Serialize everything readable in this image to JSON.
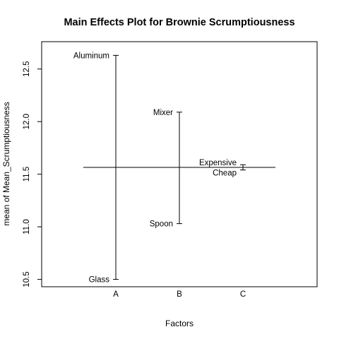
{
  "chart_data": {
    "type": "main-effects",
    "title": "Main Effects Plot for Brownie Scrumptiousness",
    "xlabel": "Factors",
    "ylabel": "mean of Mean_Scrumptiousness",
    "ylim": [
      10.43,
      12.76
    ],
    "yticks": [
      10.5,
      11.0,
      11.5,
      12.0,
      12.5
    ],
    "ytick_labels": [
      "10.5",
      "11.0",
      "11.5",
      "12.0",
      "12.5"
    ],
    "grand_mean": 11.565,
    "factors": [
      {
        "name": "A",
        "levels": [
          {
            "label": "Aluminum",
            "mean": 12.63
          },
          {
            "label": "Glass",
            "mean": 10.5
          }
        ]
      },
      {
        "name": "B",
        "levels": [
          {
            "label": "Mixer",
            "mean": 12.09
          },
          {
            "label": "Spoon",
            "mean": 11.03
          }
        ]
      },
      {
        "name": "C",
        "levels": [
          {
            "label": "Expensive",
            "mean": 11.59
          },
          {
            "label": "Cheap",
            "mean": 11.54
          }
        ]
      }
    ]
  }
}
